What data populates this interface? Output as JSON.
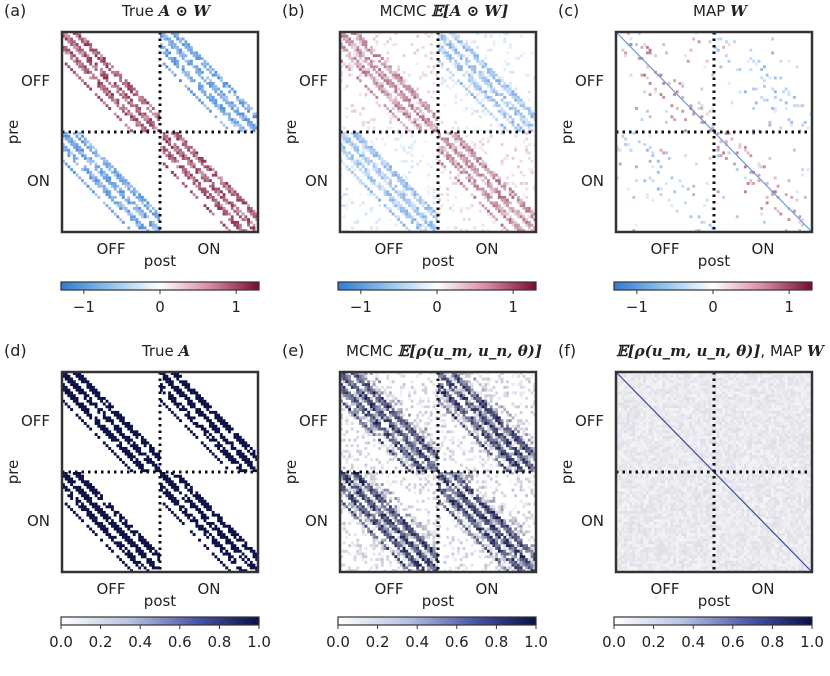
{
  "chart_data": [
    {
      "type": "heatmap",
      "panel_label": "(a)",
      "title_text": "True",
      "title_math": "A ⊙ W",
      "xlabel": "post",
      "ylabel": "pre",
      "row_groups": [
        "OFF",
        "ON"
      ],
      "col_groups": [
        "OFF",
        "ON"
      ],
      "colormap": "diverging",
      "clim": [
        -1.3,
        1.3
      ],
      "colorbar_ticks": [
        "−1",
        "0",
        "1"
      ],
      "colorbar_tick_values": [
        -1,
        0,
        1
      ],
      "pattern": "banded-signed",
      "diagonal_line": false
    },
    {
      "type": "heatmap",
      "panel_label": "(b)",
      "title_text": "MCMC",
      "title_math": "𝔼[A ⊙ W]",
      "xlabel": "post",
      "ylabel": "pre",
      "row_groups": [
        "OFF",
        "ON"
      ],
      "col_groups": [
        "OFF",
        "ON"
      ],
      "colormap": "diverging",
      "clim": [
        -1.3,
        1.3
      ],
      "colorbar_ticks": [
        "−1",
        "0",
        "1"
      ],
      "colorbar_tick_values": [
        -1,
        0,
        1
      ],
      "pattern": "banded-signed-noisy",
      "diagonal_line": false
    },
    {
      "type": "heatmap",
      "panel_label": "(c)",
      "title_text": "MAP",
      "title_math": "W",
      "xlabel": "post",
      "ylabel": "pre",
      "row_groups": [
        "OFF",
        "ON"
      ],
      "col_groups": [
        "OFF",
        "ON"
      ],
      "colormap": "diverging",
      "clim": [
        -1.3,
        1.3
      ],
      "colorbar_ticks": [
        "−1",
        "0",
        "1"
      ],
      "colorbar_tick_values": [
        -1,
        0,
        1
      ],
      "pattern": "sparse-signed",
      "diagonal_line": true
    },
    {
      "type": "heatmap",
      "panel_label": "(d)",
      "title_text": "True",
      "title_math": "A",
      "xlabel": "post",
      "ylabel": "pre",
      "row_groups": [
        "OFF",
        "ON"
      ],
      "col_groups": [
        "OFF",
        "ON"
      ],
      "colormap": "sequential",
      "clim": [
        0,
        1
      ],
      "colorbar_ticks": [
        "0.0",
        "0.2",
        "0.4",
        "0.6",
        "0.8",
        "1.0"
      ],
      "colorbar_tick_values": [
        0,
        0.2,
        0.4,
        0.6,
        0.8,
        1.0
      ],
      "pattern": "banded-binary",
      "diagonal_line": false
    },
    {
      "type": "heatmap",
      "panel_label": "(e)",
      "title_text": "MCMC",
      "title_math": "𝔼[ρ(u_m, u_n, θ)]",
      "xlabel": "post",
      "ylabel": "pre",
      "row_groups": [
        "OFF",
        "ON"
      ],
      "col_groups": [
        "OFF",
        "ON"
      ],
      "colormap": "sequential",
      "clim": [
        0,
        1
      ],
      "colorbar_ticks": [
        "0.0",
        "0.2",
        "0.4",
        "0.6",
        "0.8",
        "1.0"
      ],
      "colorbar_tick_values": [
        0,
        0.2,
        0.4,
        0.6,
        0.8,
        1.0
      ],
      "pattern": "banded-prob",
      "diagonal_line": false
    },
    {
      "type": "heatmap",
      "panel_label": "(f)",
      "title_text": ", MAP",
      "title_math": "𝔼[ρ(u_m, u_n, θ)]",
      "title_math2": "W",
      "xlabel": "post",
      "ylabel": "pre",
      "row_groups": [
        "OFF",
        "ON"
      ],
      "col_groups": [
        "OFF",
        "ON"
      ],
      "colormap": "sequential",
      "clim": [
        0,
        1
      ],
      "colorbar_ticks": [
        "0.0",
        "0.2",
        "0.4",
        "0.6",
        "0.8",
        "1.0"
      ],
      "colorbar_tick_values": [
        0,
        0.2,
        0.4,
        0.6,
        0.8,
        1.0
      ],
      "pattern": "uniform-low",
      "diagonal_line": true
    }
  ]
}
